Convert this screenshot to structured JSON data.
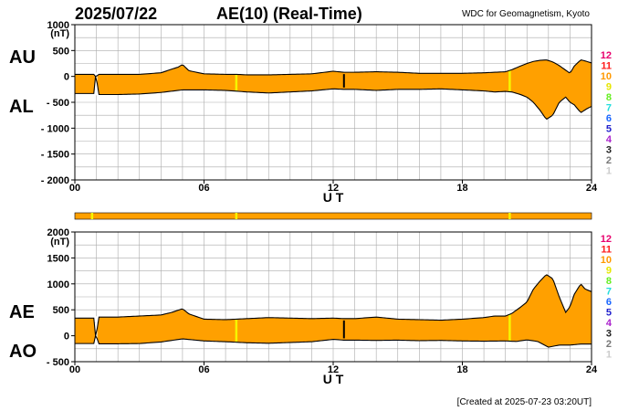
{
  "header": {
    "date": "2025/07/22",
    "title": "AE(10) (Real-Time)",
    "source": "WDC for Geomagnetism, Kyoto"
  },
  "footer": {
    "created": "[Created at 2025-07-23 03:20UT]"
  },
  "colors": {
    "fill": "#ffa000",
    "station_ok": "#f6f600",
    "grid": "#aaaaaa",
    "gap": "#ffffff",
    "curve": "#000000"
  },
  "station_legend": [
    {
      "label": "12",
      "color": "#e8006e"
    },
    {
      "label": "11",
      "color": "#ff1a1a"
    },
    {
      "label": "10",
      "color": "#ff9900"
    },
    {
      "label": "9",
      "color": "#e6e600"
    },
    {
      "label": "8",
      "color": "#66ee22"
    },
    {
      "label": "7",
      "color": "#22dddd"
    },
    {
      "label": "6",
      "color": "#1a66ff"
    },
    {
      "label": "5",
      "color": "#2222cc"
    },
    {
      "label": "4",
      "color": "#aa22cc"
    },
    {
      "label": "3",
      "color": "#222222"
    },
    {
      "label": "2",
      "color": "#777777"
    },
    {
      "label": "1",
      "color": "#cccccc"
    }
  ],
  "chart_data": [
    {
      "type": "area",
      "series": [
        {
          "name": "AU",
          "x": [
            0,
            0.9,
            0.95,
            1.0,
            1.1,
            2,
            3,
            4,
            4.5,
            4.8,
            5.0,
            5.3,
            6,
            7,
            7.5,
            8,
            9,
            10,
            11,
            12,
            12.5,
            13,
            14,
            15,
            16,
            17,
            18,
            19,
            19.5,
            20,
            20.3,
            20.7,
            21,
            21.3,
            21.6,
            21.9,
            22.2,
            22.5,
            22.8,
            23,
            23.2,
            23.5,
            23.7,
            24
          ],
          "values": [
            40,
            40,
            0,
            0,
            40,
            40,
            40,
            70,
            140,
            180,
            230,
            110,
            50,
            40,
            40,
            30,
            30,
            40,
            50,
            100,
            80,
            80,
            90,
            80,
            60,
            60,
            60,
            70,
            80,
            90,
            130,
            200,
            250,
            290,
            310,
            320,
            280,
            210,
            120,
            60,
            200,
            320,
            300,
            260
          ]
        },
        {
          "name": "AL",
          "x": [
            0,
            0.9,
            0.95,
            1.0,
            1.1,
            2,
            3,
            4,
            5,
            6,
            7,
            8,
            9,
            10,
            11,
            12,
            12.5,
            13,
            14,
            15,
            16,
            17,
            18,
            19,
            19.5,
            20,
            20.3,
            20.7,
            21,
            21.3,
            21.6,
            21.9,
            22.2,
            22.5,
            22.8,
            23,
            23.2,
            23.5,
            23.8,
            24
          ],
          "values": [
            -330,
            -330,
            0,
            0,
            -350,
            -350,
            -340,
            -310,
            -260,
            -260,
            -270,
            -300,
            -320,
            -300,
            -280,
            -240,
            -250,
            -250,
            -270,
            -250,
            -250,
            -240,
            -260,
            -280,
            -300,
            -290,
            -300,
            -350,
            -400,
            -500,
            -650,
            -830,
            -750,
            -500,
            -400,
            -500,
            -550,
            -700,
            -620,
            -580
          ]
        }
      ],
      "ylim": [
        -2000,
        1000
      ],
      "yticks": [
        1000,
        500,
        0,
        -500,
        -1000,
        -1500,
        -2000
      ],
      "ytick_labels": [
        "1000",
        "500",
        "0",
        "- 500",
        "- 1000",
        "- 1500",
        "- 2000"
      ],
      "ylabel_unit": "(nT)",
      "xlim": [
        0,
        24
      ],
      "xticks": [
        0,
        6,
        12,
        18,
        24
      ],
      "xtick_labels": [
        "00",
        "06",
        "12",
        "18",
        "24"
      ],
      "xlabel": "U T",
      "side_labels": [
        "AU",
        "AL"
      ],
      "yellow_markers": [
        7.5,
        20.2
      ],
      "black_markers": [
        12.5
      ],
      "gaps": [
        [
          0.95,
          1.0
        ]
      ],
      "grid": true
    },
    {
      "type": "area",
      "series": [
        {
          "name": "AE",
          "x": [
            0,
            0.9,
            0.95,
            1.0,
            1.1,
            2,
            3,
            4,
            4.5,
            5,
            5.3,
            6,
            7,
            8,
            9,
            10,
            11,
            12,
            12.5,
            13,
            14,
            15,
            16,
            17,
            18,
            19,
            19.5,
            20,
            20.3,
            20.7,
            21,
            21.3,
            21.6,
            21.9,
            22.2,
            22.5,
            22.8,
            23,
            23.2,
            23.5,
            23.7,
            24
          ],
          "values": [
            340,
            340,
            0,
            0,
            360,
            360,
            380,
            400,
            450,
            520,
            420,
            320,
            310,
            330,
            350,
            340,
            330,
            340,
            330,
            330,
            360,
            320,
            310,
            300,
            320,
            350,
            380,
            380,
            430,
            550,
            650,
            900,
            1050,
            1180,
            1100,
            750,
            450,
            560,
            800,
            1000,
            900,
            850
          ]
        },
        {
          "name": "AO",
          "x": [
            0,
            0.9,
            0.95,
            1.0,
            1.1,
            2,
            3,
            4,
            5,
            6,
            7,
            8,
            9,
            10,
            11,
            12,
            12.5,
            13,
            14,
            15,
            16,
            17,
            18,
            19,
            20,
            20.5,
            21,
            21.5,
            22,
            22.5,
            23,
            23.5,
            24
          ],
          "values": [
            -150,
            -150,
            0,
            0,
            -155,
            -155,
            -150,
            -120,
            -60,
            -100,
            -115,
            -135,
            -145,
            -130,
            -115,
            -70,
            -85,
            -85,
            -90,
            -85,
            -95,
            -90,
            -100,
            -105,
            -100,
            -110,
            -80,
            -110,
            -220,
            -180,
            -180,
            -160,
            -160
          ]
        }
      ],
      "ylim": [
        -500,
        2000
      ],
      "yticks": [
        2000,
        1500,
        1000,
        500,
        0,
        -500
      ],
      "ytick_labels": [
        "2000",
        "1500",
        "1000",
        "500",
        "0",
        "- 500"
      ],
      "ylabel_unit": "(nT)",
      "xlim": [
        0,
        24
      ],
      "xticks": [
        0,
        6,
        12,
        18,
        24
      ],
      "xtick_labels": [
        "00",
        "06",
        "12",
        "18",
        "24"
      ],
      "xlabel": "U T",
      "side_labels": [
        "AE",
        "AO"
      ],
      "yellow_markers": [
        7.5,
        20.2
      ],
      "black_markers": [
        12.5
      ],
      "gaps": [
        [
          0.95,
          1.0
        ]
      ],
      "grid": true
    }
  ]
}
